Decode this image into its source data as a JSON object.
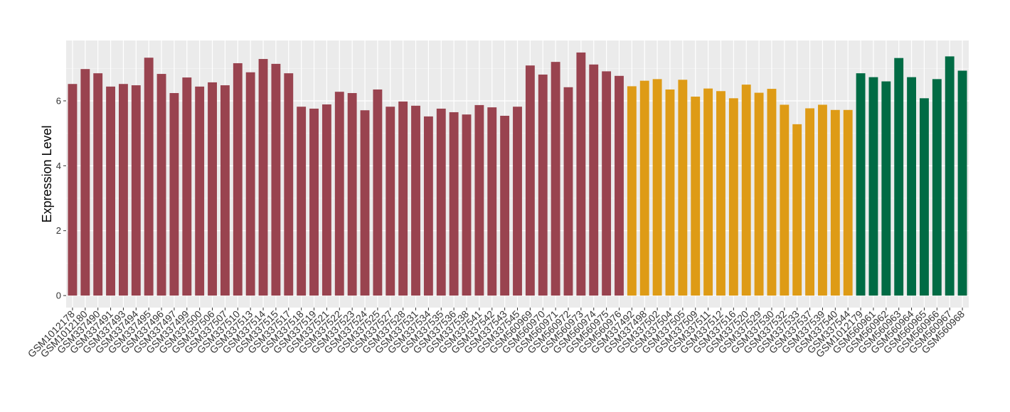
{
  "chart_data": {
    "type": "bar",
    "y_label": "Expression Level",
    "categories": [
      "GSM1012178",
      "GSM1012180",
      "GSM337490",
      "GSM337491",
      "GSM337493",
      "GSM337494",
      "GSM337495",
      "GSM337496",
      "GSM337497",
      "GSM337499",
      "GSM337500",
      "GSM337506",
      "GSM337507",
      "GSM337510",
      "GSM337513",
      "GSM337514",
      "GSM337515",
      "GSM337517",
      "GSM337518",
      "GSM337519",
      "GSM337521",
      "GSM337522",
      "GSM337523",
      "GSM337524",
      "GSM337525",
      "GSM337527",
      "GSM337528",
      "GSM337531",
      "GSM337534",
      "GSM337535",
      "GSM337536",
      "GSM337538",
      "GSM337541",
      "GSM337542",
      "GSM337543",
      "GSM337545",
      "GSM560969",
      "GSM560970",
      "GSM560971",
      "GSM560972",
      "GSM560973",
      "GSM560974",
      "GSM560975",
      "GSM560976",
      "GSM337492",
      "GSM337498",
      "GSM337502",
      "GSM337504",
      "GSM337505",
      "GSM337509",
      "GSM337511",
      "GSM337512",
      "GSM337516",
      "GSM337520",
      "GSM337529",
      "GSM337530",
      "GSM337532",
      "GSM337533",
      "GSM337537",
      "GSM337539",
      "GSM337540",
      "GSM337544",
      "GSM1012179",
      "GSM560961",
      "GSM560962",
      "GSM560963",
      "GSM560964",
      "GSM560965",
      "GSM560966",
      "GSM560967",
      "GSM560968"
    ],
    "values": [
      6.52,
      6.98,
      6.85,
      6.44,
      6.52,
      6.48,
      7.33,
      6.83,
      6.24,
      6.72,
      6.44,
      6.57,
      6.48,
      7.16,
      6.88,
      7.29,
      7.14,
      6.85,
      5.82,
      5.76,
      5.89,
      6.28,
      6.24,
      5.71,
      6.35,
      5.82,
      5.98,
      5.85,
      5.52,
      5.76,
      5.65,
      5.58,
      5.87,
      5.8,
      5.54,
      5.82,
      7.09,
      6.81,
      7.2,
      6.42,
      7.49,
      7.12,
      6.91,
      6.77,
      6.45,
      6.62,
      6.67,
      6.35,
      6.65,
      6.13,
      6.38,
      6.3,
      6.08,
      6.5,
      6.25,
      6.37,
      5.88,
      5.28,
      5.77,
      5.88,
      5.72,
      5.72,
      6.85,
      6.73,
      6.6,
      7.32,
      6.73,
      6.08,
      6.67,
      7.37,
      6.93
    ],
    "bar_colors": [
      "#99434f",
      "#99434f",
      "#99434f",
      "#99434f",
      "#99434f",
      "#99434f",
      "#99434f",
      "#99434f",
      "#99434f",
      "#99434f",
      "#99434f",
      "#99434f",
      "#99434f",
      "#99434f",
      "#99434f",
      "#99434f",
      "#99434f",
      "#99434f",
      "#99434f",
      "#99434f",
      "#99434f",
      "#99434f",
      "#99434f",
      "#99434f",
      "#99434f",
      "#99434f",
      "#99434f",
      "#99434f",
      "#99434f",
      "#99434f",
      "#99434f",
      "#99434f",
      "#99434f",
      "#99434f",
      "#99434f",
      "#99434f",
      "#99434f",
      "#99434f",
      "#99434f",
      "#99434f",
      "#99434f",
      "#99434f",
      "#99434f",
      "#99434f",
      "#de9b16",
      "#de9b16",
      "#de9b16",
      "#de9b16",
      "#de9b16",
      "#de9b16",
      "#de9b16",
      "#de9b16",
      "#de9b16",
      "#de9b16",
      "#de9b16",
      "#de9b16",
      "#de9b16",
      "#de9b16",
      "#de9b16",
      "#de9b16",
      "#de9b16",
      "#de9b16",
      "#006b44",
      "#006b44",
      "#006b44",
      "#006b44",
      "#006b44",
      "#006b44",
      "#006b44",
      "#006b44",
      "#006b44"
    ],
    "ylim": [
      -0.37,
      7.86
    ],
    "yticks": [
      0,
      2,
      4,
      6
    ],
    "grid": true
  }
}
